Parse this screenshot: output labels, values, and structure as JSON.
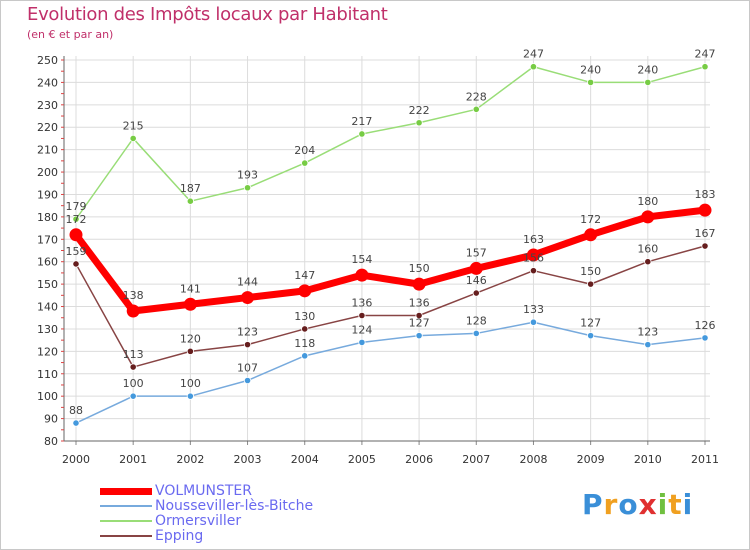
{
  "title": "Evolution des Impôts locaux par Habitant",
  "subtitle": "(en € et par an)",
  "brand": {
    "text": "Proxiti",
    "letters": [
      {
        "ch": "P",
        "color": "#3a8fd8"
      },
      {
        "ch": "r",
        "color": "#f0a020"
      },
      {
        "ch": "o",
        "color": "#3a8fd8"
      },
      {
        "ch": "x",
        "color": "#e03030"
      },
      {
        "ch": "i",
        "color": "#70c040"
      },
      {
        "ch": "t",
        "color": "#f0a020"
      },
      {
        "ch": "i",
        "color": "#3a8fd8"
      }
    ]
  },
  "chart_data": {
    "type": "line",
    "title": "Evolution des Impôts locaux par Habitant",
    "subtitle": "(en € et par an)",
    "xlabel": "",
    "ylabel": "",
    "categories": [
      "2000",
      "2001",
      "2002",
      "2003",
      "2004",
      "2005",
      "2006",
      "2007",
      "2008",
      "2009",
      "2010",
      "2011"
    ],
    "ylim": [
      80,
      250
    ],
    "yticks": [
      80,
      90,
      100,
      110,
      120,
      130,
      140,
      150,
      160,
      170,
      180,
      190,
      200,
      210,
      220,
      230,
      240,
      250
    ],
    "grid": true,
    "legend_position": "bottom-left",
    "series": [
      {
        "name": "Ormersviller",
        "color": "#99dd77",
        "point_color": "#77cc44",
        "emphasis": false,
        "values": [
          179,
          215,
          187,
          193,
          204,
          217,
          222,
          228,
          247,
          240,
          240,
          247
        ]
      },
      {
        "name": "Nousseviller-lès-Bitche",
        "color": "#77aadd",
        "point_color": "#4499dd",
        "emphasis": false,
        "values": [
          88,
          100,
          100,
          107,
          118,
          124,
          127,
          128,
          133,
          127,
          123,
          126
        ]
      },
      {
        "name": "Epping",
        "color": "#884444",
        "point_color": "#661e1e",
        "emphasis": false,
        "values": [
          159,
          113,
          120,
          123,
          130,
          136,
          136,
          146,
          156,
          150,
          160,
          167
        ]
      },
      {
        "name": "VOLMUNSTER",
        "color": "#ff0000",
        "point_color": "#ff0000",
        "emphasis": true,
        "values": [
          172,
          138,
          141,
          144,
          147,
          154,
          150,
          157,
          163,
          172,
          180,
          183
        ]
      }
    ],
    "legend_order": [
      "VOLMUNSTER",
      "Nousseviller-lès-Bitche",
      "Ormersviller",
      "Epping"
    ]
  }
}
